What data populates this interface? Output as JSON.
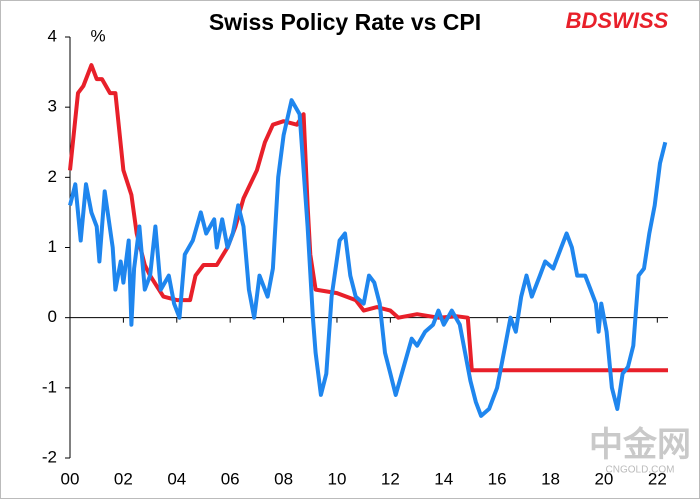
{
  "chart_data": {
    "type": "line",
    "title": "Swiss Policy Rate vs CPI",
    "y_label": "%",
    "brand": "BDSWISS",
    "watermark": "中金网",
    "watermark_url": "CNGOLD.COM",
    "xlim": [
      0,
      22.4
    ],
    "ylim": [
      -2,
      4
    ],
    "xticks": [
      {
        "value": 0,
        "label": "00"
      },
      {
        "value": 2,
        "label": "02"
      },
      {
        "value": 4,
        "label": "04"
      },
      {
        "value": 6,
        "label": "06"
      },
      {
        "value": 8,
        "label": "08"
      },
      {
        "value": 10,
        "label": "10"
      },
      {
        "value": 12,
        "label": "12"
      },
      {
        "value": 14,
        "label": "14"
      },
      {
        "value": 16,
        "label": "16"
      },
      {
        "value": 18,
        "label": "18"
      },
      {
        "value": 20,
        "label": "20"
      },
      {
        "value": 22,
        "label": "22"
      }
    ],
    "yticks": [
      -2,
      -1,
      0,
      1,
      2,
      3,
      4
    ],
    "series": [
      {
        "color": "#e8202a",
        "x": [
          0,
          0.3,
          0.5,
          0.7,
          0.8,
          1.0,
          1.2,
          1.5,
          1.7,
          2.0,
          2.3,
          2.5,
          2.8,
          3.0,
          3.5,
          4.0,
          4.5,
          4.7,
          5.0,
          5.5,
          5.9,
          6.2,
          6.5,
          7.0,
          7.3,
          7.6,
          8.0,
          8.5,
          8.75,
          8.9,
          9.0,
          9.2,
          10.0,
          10.7,
          11.0,
          11.5,
          12.0,
          12.3,
          13.0,
          13.8,
          14.5,
          14.9,
          15.05,
          22.4
        ],
        "values": [
          2.1,
          3.2,
          3.3,
          3.5,
          3.6,
          3.4,
          3.4,
          3.2,
          3.2,
          2.1,
          1.75,
          1.2,
          0.75,
          0.6,
          0.3,
          0.25,
          0.25,
          0.6,
          0.75,
          0.75,
          1.0,
          1.3,
          1.7,
          2.1,
          2.5,
          2.75,
          2.8,
          2.75,
          2.9,
          1.6,
          0.9,
          0.4,
          0.35,
          0.25,
          0.1,
          0.15,
          0.1,
          0.0,
          0.05,
          0.0,
          0.02,
          0.0,
          -0.75,
          -0.75
        ]
      },
      {
        "color": "#1f86ee",
        "x": [
          0,
          0.2,
          0.4,
          0.6,
          0.8,
          1.0,
          1.1,
          1.3,
          1.6,
          1.7,
          1.9,
          2.0,
          2.2,
          2.3,
          2.4,
          2.6,
          2.8,
          3.0,
          3.2,
          3.4,
          3.7,
          3.9,
          4.1,
          4.3,
          4.6,
          4.9,
          5.1,
          5.4,
          5.5,
          5.7,
          5.9,
          6.1,
          6.3,
          6.5,
          6.7,
          6.9,
          7.1,
          7.4,
          7.6,
          7.8,
          8.0,
          8.3,
          8.6,
          8.9,
          9.1,
          9.2,
          9.4,
          9.6,
          9.8,
          10.1,
          10.3,
          10.5,
          10.7,
          11.0,
          11.2,
          11.4,
          11.6,
          11.8,
          12.0,
          12.2,
          12.5,
          12.8,
          13.0,
          13.3,
          13.6,
          13.8,
          14.0,
          14.3,
          14.6,
          14.8,
          15.0,
          15.2,
          15.4,
          15.7,
          16.0,
          16.3,
          16.5,
          16.7,
          16.9,
          17.1,
          17.3,
          17.6,
          17.8,
          18.1,
          18.4,
          18.6,
          18.8,
          19.0,
          19.3,
          19.5,
          19.7,
          19.8,
          19.9,
          20.1,
          20.3,
          20.5,
          20.7,
          20.9,
          21.1,
          21.3,
          21.5,
          21.7,
          21.9,
          22.1,
          22.3
        ],
        "values": [
          1.6,
          1.9,
          1.1,
          1.9,
          1.5,
          1.3,
          0.8,
          1.8,
          1.0,
          0.4,
          0.8,
          0.5,
          1.1,
          -0.1,
          0.7,
          1.3,
          0.4,
          0.6,
          1.3,
          0.4,
          0.6,
          0.2,
          0.0,
          0.9,
          1.1,
          1.5,
          1.2,
          1.4,
          1.0,
          1.4,
          1.0,
          1.2,
          1.6,
          1.3,
          0.4,
          0.0,
          0.6,
          0.3,
          0.7,
          2.0,
          2.6,
          3.1,
          2.9,
          1.3,
          0.0,
          -0.5,
          -1.1,
          -0.8,
          0.3,
          1.1,
          1.2,
          0.6,
          0.3,
          0.2,
          0.6,
          0.5,
          0.2,
          -0.5,
          -0.8,
          -1.1,
          -0.7,
          -0.3,
          -0.4,
          -0.2,
          -0.1,
          0.1,
          -0.1,
          0.1,
          -0.1,
          -0.5,
          -0.9,
          -1.2,
          -1.4,
          -1.3,
          -1.0,
          -0.4,
          0.0,
          -0.2,
          0.3,
          0.6,
          0.3,
          0.6,
          0.8,
          0.7,
          1.0,
          1.2,
          1.0,
          0.6,
          0.6,
          0.4,
          0.2,
          -0.2,
          0.2,
          -0.2,
          -1.0,
          -1.3,
          -0.8,
          -0.7,
          -0.4,
          0.6,
          0.7,
          1.2,
          1.6,
          2.2,
          2.5
        ]
      }
    ]
  }
}
